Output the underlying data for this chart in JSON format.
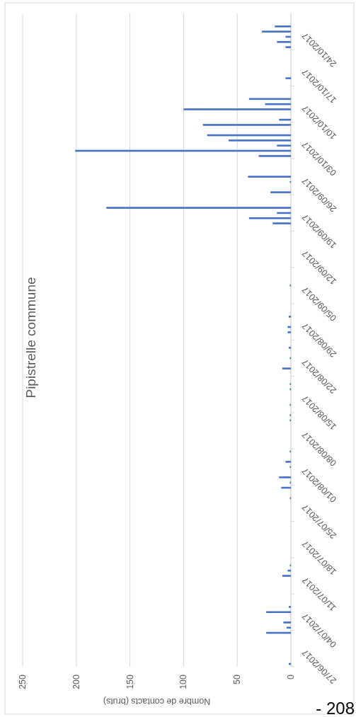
{
  "chart_data": {
    "type": "bar",
    "orientation": "horizontal",
    "title": "Pipistrelle commune",
    "xlabel": "Nombre de contacts (bruts)",
    "x": [
      "2017-06-27",
      "2017-07-03",
      "2017-07-04",
      "2017-07-05",
      "2017-07-07",
      "2017-07-08",
      "2017-07-14",
      "2017-07-15",
      "2017-07-16",
      "2017-07-29",
      "2017-07-31",
      "2017-08-01",
      "2017-08-02",
      "2017-08-04",
      "2017-08-05",
      "2017-08-07",
      "2017-08-13",
      "2017-08-14",
      "2017-08-16",
      "2017-08-19",
      "2017-08-20",
      "2017-08-23",
      "2017-08-25",
      "2017-08-27",
      "2017-08-30",
      "2017-08-31",
      "2017-09-02",
      "2017-09-08",
      "2017-09-20",
      "2017-09-21",
      "2017-09-22",
      "2017-09-23",
      "2017-09-26",
      "2017-09-28",
      "2017-09-29",
      "2017-10-03",
      "2017-10-04",
      "2017-10-05",
      "2017-10-06",
      "2017-10-07",
      "2017-10-09",
      "2017-10-10",
      "2017-10-12",
      "2017-10-13",
      "2017-10-14",
      "2017-10-18",
      "2017-10-24",
      "2017-10-25",
      "2017-10-26",
      "2017-10-27",
      "2017-10-28"
    ],
    "values": [
      2,
      23,
      4,
      7,
      23,
      2,
      8,
      3,
      1,
      1,
      9,
      1,
      11,
      1,
      5,
      1,
      1,
      1,
      1,
      1,
      1,
      8,
      1,
      2,
      3,
      3,
      2,
      1,
      17,
      39,
      13,
      172,
      19,
      1,
      40,
      30,
      201,
      13,
      58,
      78,
      82,
      11,
      100,
      24,
      39,
      5,
      5,
      13,
      5,
      27,
      15
    ],
    "color": "#4472c4",
    "ylim": [
      "2017-06-27",
      "2017-10-31"
    ],
    "yticks": [
      {
        "value": "2017-06-27",
        "label": "27/06/2017"
      },
      {
        "value": "2017-07-04",
        "label": "04/07/2017"
      },
      {
        "value": "2017-07-11",
        "label": "11/07/2017"
      },
      {
        "value": "2017-07-18",
        "label": "18/07/2017"
      },
      {
        "value": "2017-07-25",
        "label": "25/07/2017"
      },
      {
        "value": "2017-08-01",
        "label": "01/08/2017"
      },
      {
        "value": "2017-08-08",
        "label": "08/08/2017"
      },
      {
        "value": "2017-08-15",
        "label": "15/08/2017"
      },
      {
        "value": "2017-08-22",
        "label": "22/08/2017"
      },
      {
        "value": "2017-08-29",
        "label": "29/08/2017"
      },
      {
        "value": "2017-09-05",
        "label": "05/09/2017"
      },
      {
        "value": "2017-09-12",
        "label": "12/09/2017"
      },
      {
        "value": "2017-09-19",
        "label": "19/09/2017"
      },
      {
        "value": "2017-09-26",
        "label": "26/09/2017"
      },
      {
        "value": "2017-10-03",
        "label": "03/10/2017"
      },
      {
        "value": "2017-10-10",
        "label": "10/10/2017"
      },
      {
        "value": "2017-10-17",
        "label": "17/10/2017"
      },
      {
        "value": "2017-10-24",
        "label": "24/10/2017"
      }
    ],
    "xlim": [
      250,
      0
    ],
    "xticks": [
      0,
      50,
      100,
      150,
      200,
      250
    ],
    "grid": "x",
    "annotations": [
      "- 208"
    ]
  }
}
